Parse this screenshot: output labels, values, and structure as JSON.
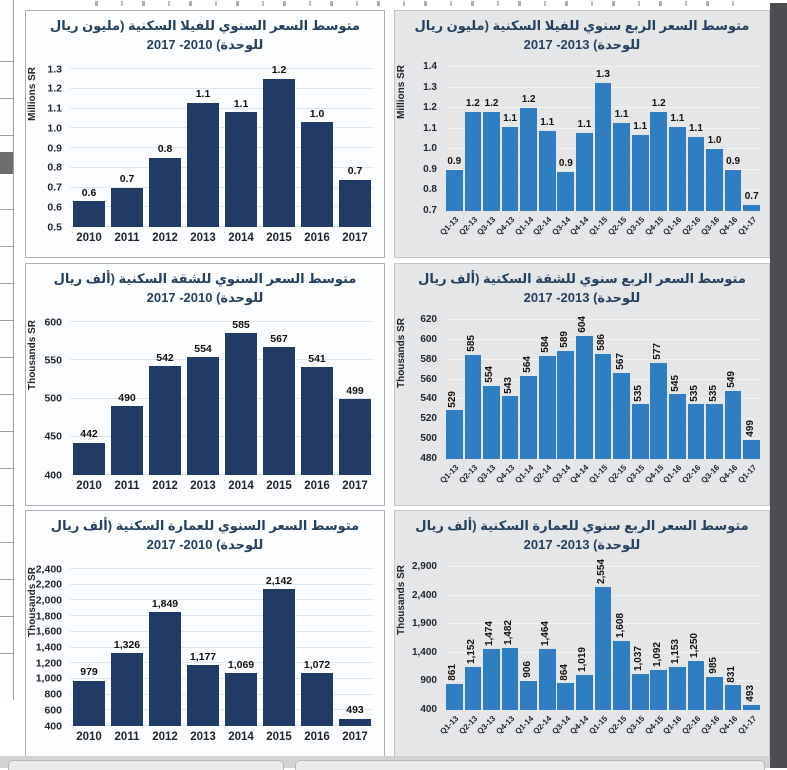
{
  "colors": {
    "annual_bar": "#1f3b66",
    "quarterly_bar": "#2f7ec2",
    "left_card_bg": "#fcfdfe",
    "right_card_bg": "#e4e6e8",
    "title_text": "#25415f"
  },
  "chart_data": [
    {
      "id": "villa-annual",
      "type": "bar",
      "title_line1": "متوسط السعر السنوي للفيلا السكنية  (مليون ريال",
      "title_line2": "للوحدة) 2010- 2017",
      "ylabel": "Millions SR",
      "categories": [
        "2010",
        "2011",
        "2012",
        "2013",
        "2014",
        "2015",
        "2016",
        "2017"
      ],
      "values": [
        0.6,
        0.7,
        0.8,
        1.1,
        1.1,
        1.2,
        1.0,
        0.7
      ],
      "labels": [
        "0.6",
        "0.7",
        "0.8",
        "1.1",
        "1.1",
        "1.2",
        "1.0",
        "0.7"
      ],
      "bar_heights": [
        0.63,
        0.7,
        0.85,
        1.13,
        1.08,
        1.25,
        1.03,
        0.74
      ],
      "ylim": [
        0.5,
        1.3
      ],
      "ytick_values": [
        1.3,
        1.2,
        1.1,
        1.0,
        0.9,
        0.8,
        0.7,
        0.6,
        0.5
      ],
      "ytick_labels": [
        "1.3",
        "1.2",
        "1.1",
        "1.0",
        "0.9",
        "0.8",
        "0.7",
        "0.6",
        "0.5"
      ],
      "bar_color": "#1f3b66",
      "rotate_xlabels": false,
      "rotate_datalabels": false,
      "grid": true,
      "legend": "none"
    },
    {
      "id": "villa-quarterly",
      "type": "bar",
      "title_line1": "متوسط السعر الربع سنوي للفيلا السكنية  (مليون ريال",
      "title_line2": "للوحدة) 2013- 2017",
      "ylabel": "Millions SR",
      "categories": [
        "Q1-13",
        "Q2-13",
        "Q3-13",
        "Q4-13",
        "Q1-14",
        "Q2-14",
        "Q3-14",
        "Q4-14",
        "Q1-15",
        "Q2-15",
        "Q3-15",
        "Q4-15",
        "Q1-16",
        "Q2-16",
        "Q3-16",
        "Q4-16",
        "Q1-17"
      ],
      "values": [
        0.9,
        1.2,
        1.2,
        1.1,
        1.2,
        1.1,
        0.9,
        1.1,
        1.3,
        1.1,
        1.1,
        1.2,
        1.1,
        1.1,
        1.0,
        0.9,
        0.7
      ],
      "labels": [
        "0.9",
        "1.2",
        "1.2",
        "1.1",
        "1.2",
        "1.1",
        "0.9",
        "1.1",
        "1.3",
        "1.1",
        "1.1",
        "1.2",
        "1.1",
        "1.1",
        "1.0",
        "0.9",
        "0.7"
      ],
      "bar_heights": [
        0.9,
        1.18,
        1.18,
        1.11,
        1.2,
        1.09,
        0.89,
        1.08,
        1.32,
        1.13,
        1.07,
        1.18,
        1.11,
        1.06,
        1.0,
        0.9,
        0.73
      ],
      "ylim": [
        0.7,
        1.4
      ],
      "ytick_values": [
        1.4,
        1.3,
        1.2,
        1.1,
        1.0,
        0.9,
        0.8,
        0.7
      ],
      "ytick_labels": [
        "1.4",
        "1.3",
        "1.2",
        "1.1",
        "1.0",
        "0.9",
        "0.8",
        "0.7"
      ],
      "bar_color": "#2f7ec2",
      "rotate_xlabels": true,
      "rotate_datalabels": false,
      "grid": true,
      "legend": "none"
    },
    {
      "id": "apartment-annual",
      "type": "bar",
      "title_line1": "متوسط السعر السنوي للشقة السكنية  (ألف ريال",
      "title_line2": "للوحدة) 2010- 2017",
      "ylabel": "Thousands SR",
      "categories": [
        "2010",
        "2011",
        "2012",
        "2013",
        "2014",
        "2015",
        "2016",
        "2017"
      ],
      "values": [
        442,
        490,
        542,
        554,
        585,
        567,
        541,
        499
      ],
      "labels": [
        "442",
        "490",
        "542",
        "554",
        "585",
        "567",
        "541",
        "499"
      ],
      "ylim": [
        400,
        600
      ],
      "ytick_values": [
        600,
        550,
        500,
        450,
        400
      ],
      "ytick_labels": [
        "600",
        "550",
        "500",
        "450",
        "400"
      ],
      "bar_color": "#1f3b66",
      "rotate_xlabels": false,
      "rotate_datalabels": false,
      "grid": true,
      "legend": "none"
    },
    {
      "id": "apartment-quarterly",
      "type": "bar",
      "title_line1": "متوسط السعر الربع سنوي للشقة السكنية  (ألف ريال",
      "title_line2": "للوحدة) 2013- 2017",
      "ylabel": "Thousands SR",
      "categories": [
        "Q1-13",
        "Q2-13",
        "Q3-13",
        "Q4-13",
        "Q1-14",
        "Q2-14",
        "Q3-14",
        "Q4-14",
        "Q1-15",
        "Q2-15",
        "Q3-15",
        "Q4-15",
        "Q1-16",
        "Q2-16",
        "Q3-16",
        "Q4-16",
        "Q1-17"
      ],
      "values": [
        529,
        585,
        554,
        543,
        564,
        584,
        589,
        604,
        586,
        567,
        535,
        577,
        545,
        535,
        535,
        549,
        499
      ],
      "labels": [
        "529",
        "585",
        "554",
        "543",
        "564",
        "584",
        "589",
        "604",
        "586",
        "567",
        "535",
        "577",
        "545",
        "535",
        "535",
        "549",
        "499"
      ],
      "ylim": [
        480,
        620
      ],
      "ytick_values": [
        620,
        600,
        580,
        560,
        540,
        520,
        500,
        480
      ],
      "ytick_labels": [
        "620",
        "600",
        "580",
        "560",
        "540",
        "520",
        "500",
        "480"
      ],
      "bar_color": "#2f7ec2",
      "rotate_xlabels": true,
      "rotate_datalabels": true,
      "grid": true,
      "legend": "none"
    },
    {
      "id": "building-annual",
      "type": "bar",
      "title_line1": "متوسط السعر السنوي للعمارة السكنية  (ألف ريال",
      "title_line2": "للوحدة) 2010- 2017",
      "ylabel": "Thousands SR",
      "categories": [
        "2010",
        "2011",
        "2012",
        "2013",
        "2014",
        "2015",
        "2016",
        "2017"
      ],
      "values": [
        979,
        1326,
        1849,
        1177,
        1069,
        2142,
        1072,
        493
      ],
      "labels": [
        "979",
        "1,326",
        "1,849",
        "1,177",
        "1,069",
        "2,142",
        "1,072",
        "493"
      ],
      "ylim": [
        400,
        2400
      ],
      "ytick_values": [
        2400,
        2200,
        2000,
        1800,
        1600,
        1400,
        1200,
        1000,
        800,
        600,
        400
      ],
      "ytick_labels": [
        "2,400",
        "2,200",
        "2,000",
        "1,800",
        "1,600",
        "1,400",
        "1,200",
        "1,000",
        "800",
        "600",
        "400"
      ],
      "bar_color": "#1f3b66",
      "rotate_xlabels": false,
      "rotate_datalabels": false,
      "grid": true,
      "legend": "none"
    },
    {
      "id": "building-quarterly",
      "type": "bar",
      "title_line1": "متوسط السعر الربع سنوي للعمارة السكنية  (ألف ريال",
      "title_line2": "للوحدة) 2013- 2017",
      "ylabel": "Thousands SR",
      "categories": [
        "Q1-13",
        "Q2-13",
        "Q3-13",
        "Q4-13",
        "Q1-14",
        "Q2-14",
        "Q3-14",
        "Q4-14",
        "Q1-15",
        "Q2-15",
        "Q3-15",
        "Q4-15",
        "Q1-16",
        "Q2-16",
        "Q3-16",
        "Q4-16",
        "Q1-17"
      ],
      "values": [
        861,
        1152,
        1474,
        1482,
        906,
        1464,
        864,
        1019,
        2554,
        1608,
        1037,
        1092,
        1153,
        1250,
        985,
        831,
        493
      ],
      "labels": [
        "861",
        "1,152",
        "1,474",
        "1,482",
        "906",
        "1,464",
        "864",
        "1,019",
        "2,554",
        "1,608",
        "1,037",
        "1,092",
        "1,153",
        "1,250",
        "985",
        "831",
        "493"
      ],
      "ylim": [
        400,
        2900
      ],
      "ytick_values": [
        2900,
        2400,
        1900,
        1400,
        900,
        400
      ],
      "ytick_labels": [
        "2,900",
        "2,400",
        "1,900",
        "1,400",
        "900",
        "400"
      ],
      "bar_color": "#2f7ec2",
      "rotate_xlabels": true,
      "rotate_datalabels": true,
      "grid": true,
      "legend": "none"
    }
  ]
}
